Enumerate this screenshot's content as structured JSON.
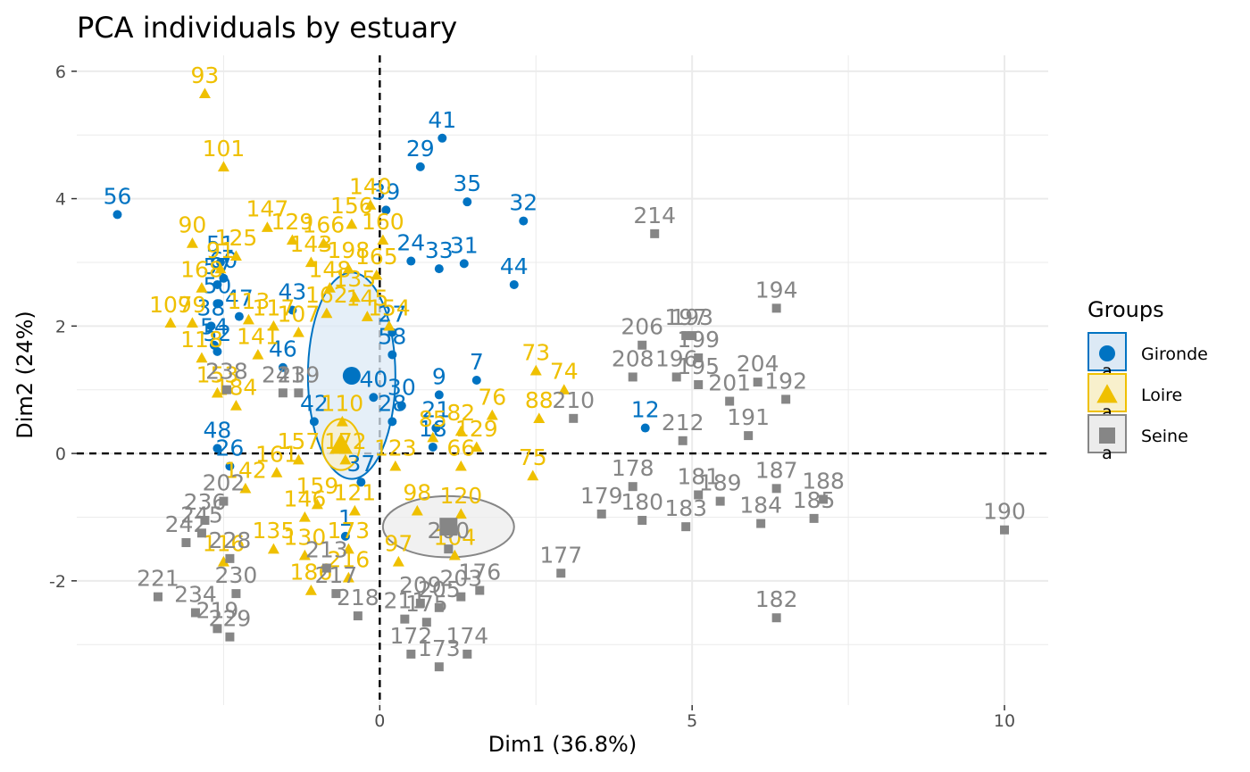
{
  "chart_data": {
    "type": "scatter",
    "title": "PCA individuals by estuary",
    "xlabel": "Dim1 (36.8%)",
    "ylabel": "Dim2 (24%)",
    "xlim": [
      -4.85,
      10.7
    ],
    "ylim": [
      -3.95,
      6.25
    ],
    "xticks": [
      0,
      5,
      10
    ],
    "yticks": [
      -2,
      0,
      2,
      4,
      6
    ],
    "grid": true,
    "legend": {
      "title": "Groups",
      "position": "right",
      "entries": [
        {
          "name": "Gironde",
          "key_letter": "a"
        },
        {
          "name": "Loire",
          "key_letter": "a"
        },
        {
          "name": "Seine",
          "key_letter": "a"
        }
      ]
    },
    "series": [
      {
        "name": "Gironde",
        "marker": "circle",
        "color": "#0073C2",
        "points": [
          {
            "x": -4.2,
            "y": 3.75,
            "label": "56"
          },
          {
            "x": 1.0,
            "y": 4.95,
            "label": "41"
          },
          {
            "x": 0.65,
            "y": 4.5,
            "label": "29"
          },
          {
            "x": 1.4,
            "y": 3.95,
            "label": "35"
          },
          {
            "x": 2.3,
            "y": 3.65,
            "label": "32"
          },
          {
            "x": 0.1,
            "y": 3.82,
            "label": "39"
          },
          {
            "x": 0.5,
            "y": 3.02,
            "label": "24"
          },
          {
            "x": 1.35,
            "y": 2.98,
            "label": "31"
          },
          {
            "x": 0.95,
            "y": 2.9,
            "label": "33"
          },
          {
            "x": 2.15,
            "y": 2.65,
            "label": "44"
          },
          {
            "x": -2.55,
            "y": 3.0,
            "label": "51"
          },
          {
            "x": -2.5,
            "y": 2.75,
            "label": "60"
          },
          {
            "x": -2.6,
            "y": 2.65,
            "label": "57"
          },
          {
            "x": -2.6,
            "y": 2.35,
            "label": "50"
          },
          {
            "x": -2.25,
            "y": 2.15,
            "label": "47"
          },
          {
            "x": -1.4,
            "y": 2.25,
            "label": "43"
          },
          {
            "x": 0.2,
            "y": 1.9,
            "label": "27"
          },
          {
            "x": 0.2,
            "y": 1.55,
            "label": "58"
          },
          {
            "x": -2.7,
            "y": 2.0,
            "label": "38"
          },
          {
            "x": -2.65,
            "y": 1.7,
            "label": "54"
          },
          {
            "x": -2.6,
            "y": 1.6,
            "label": "52"
          },
          {
            "x": -1.55,
            "y": 1.35,
            "label": "46"
          },
          {
            "x": 1.55,
            "y": 1.15,
            "label": "7"
          },
          {
            "x": 0.95,
            "y": 0.92,
            "label": "9"
          },
          {
            "x": 0.35,
            "y": 0.75,
            "label": "30"
          },
          {
            "x": -0.1,
            "y": 0.88,
            "label": "40"
          },
          {
            "x": -1.05,
            "y": 0.5,
            "label": "42"
          },
          {
            "x": 0.9,
            "y": 0.4,
            "label": "21"
          },
          {
            "x": 0.2,
            "y": 0.5,
            "label": "28"
          },
          {
            "x": 4.25,
            "y": 0.4,
            "label": "12"
          },
          {
            "x": -2.6,
            "y": 0.08,
            "label": "48"
          },
          {
            "x": -2.4,
            "y": -0.2,
            "label": "26"
          },
          {
            "x": 0.85,
            "y": 0.1,
            "label": "18"
          },
          {
            "x": -0.3,
            "y": -0.45,
            "label": "37"
          },
          {
            "x": -0.55,
            "y": -1.3,
            "label": "1"
          }
        ]
      },
      {
        "name": "Loire",
        "marker": "triangle",
        "color": "#EFC000",
        "points": [
          {
            "x": -2.8,
            "y": 5.65,
            "label": "93"
          },
          {
            "x": -2.5,
            "y": 4.5,
            "label": "101"
          },
          {
            "x": -0.45,
            "y": 3.6,
            "label": "156"
          },
          {
            "x": -0.15,
            "y": 3.9,
            "label": "140"
          },
          {
            "x": -3.0,
            "y": 3.3,
            "label": "90"
          },
          {
            "x": -1.8,
            "y": 3.55,
            "label": "147"
          },
          {
            "x": -1.4,
            "y": 3.35,
            "label": "129"
          },
          {
            "x": -0.9,
            "y": 3.3,
            "label": "166"
          },
          {
            "x": 0.05,
            "y": 3.35,
            "label": "160"
          },
          {
            "x": -2.3,
            "y": 3.1,
            "label": "125"
          },
          {
            "x": -2.55,
            "y": 2.9,
            "label": "91"
          },
          {
            "x": -1.1,
            "y": 3.0,
            "label": "143"
          },
          {
            "x": -0.5,
            "y": 2.9,
            "label": "198"
          },
          {
            "x": -0.05,
            "y": 2.8,
            "label": "165"
          },
          {
            "x": -2.85,
            "y": 2.6,
            "label": "168"
          },
          {
            "x": -0.8,
            "y": 2.6,
            "label": "148"
          },
          {
            "x": -0.4,
            "y": 2.45,
            "label": "135"
          },
          {
            "x": -0.85,
            "y": 2.2,
            "label": "162"
          },
          {
            "x": -3.35,
            "y": 2.05,
            "label": "109"
          },
          {
            "x": -3.0,
            "y": 2.05,
            "label": "79"
          },
          {
            "x": -2.1,
            "y": 2.1,
            "label": "113"
          },
          {
            "x": -1.7,
            "y": 2.0,
            "label": "117"
          },
          {
            "x": -0.2,
            "y": 2.15,
            "label": "145"
          },
          {
            "x": -1.3,
            "y": 1.9,
            "label": "107"
          },
          {
            "x": 0.15,
            "y": 2.0,
            "label": "154"
          },
          {
            "x": -2.85,
            "y": 1.5,
            "label": "118"
          },
          {
            "x": -1.95,
            "y": 1.55,
            "label": "141"
          },
          {
            "x": 2.5,
            "y": 1.3,
            "label": "73"
          },
          {
            "x": 2.95,
            "y": 1.0,
            "label": "74"
          },
          {
            "x": 1.8,
            "y": 0.6,
            "label": "76"
          },
          {
            "x": 2.55,
            "y": 0.55,
            "label": "88"
          },
          {
            "x": -2.6,
            "y": 0.95,
            "label": "153"
          },
          {
            "x": -2.3,
            "y": 0.75,
            "label": "184"
          },
          {
            "x": -0.6,
            "y": 0.5,
            "label": "110"
          },
          {
            "x": 1.3,
            "y": 0.35,
            "label": "82"
          },
          {
            "x": 0.85,
            "y": 0.25,
            "label": "85"
          },
          {
            "x": -1.3,
            "y": -0.1,
            "label": "157"
          },
          {
            "x": -1.65,
            "y": -0.3,
            "label": "161"
          },
          {
            "x": -2.15,
            "y": -0.55,
            "label": "142"
          },
          {
            "x": -0.55,
            "y": -0.1,
            "label": "172"
          },
          {
            "x": 0.25,
            "y": -0.2,
            "label": "123"
          },
          {
            "x": 1.55,
            "y": 0.1,
            "label": "129"
          },
          {
            "x": 2.45,
            "y": -0.35,
            "label": "75"
          },
          {
            "x": 1.3,
            "y": -0.2,
            "label": "66"
          },
          {
            "x": -1.0,
            "y": -0.8,
            "label": "159"
          },
          {
            "x": -1.2,
            "y": -1.0,
            "label": "146"
          },
          {
            "x": -0.4,
            "y": -0.9,
            "label": "121"
          },
          {
            "x": 0.6,
            "y": -0.9,
            "label": "98"
          },
          {
            "x": 1.3,
            "y": -0.95,
            "label": "120"
          },
          {
            "x": -1.7,
            "y": -1.5,
            "label": "135"
          },
          {
            "x": -1.2,
            "y": -1.6,
            "label": "130"
          },
          {
            "x": -0.5,
            "y": -1.5,
            "label": "173"
          },
          {
            "x": 0.3,
            "y": -1.7,
            "label": "97"
          },
          {
            "x": 1.2,
            "y": -1.6,
            "label": "104"
          },
          {
            "x": -2.5,
            "y": -1.7,
            "label": "116"
          },
          {
            "x": -1.1,
            "y": -2.15,
            "label": "186"
          },
          {
            "x": -0.5,
            "y": -1.95,
            "label": "216"
          }
        ]
      },
      {
        "name": "Seine",
        "marker": "square",
        "color": "#868686",
        "points": [
          {
            "x": 4.4,
            "y": 3.45,
            "label": "214"
          },
          {
            "x": 6.35,
            "y": 2.28,
            "label": "194"
          },
          {
            "x": 4.9,
            "y": 1.85,
            "label": "197"
          },
          {
            "x": 5.0,
            "y": 1.85,
            "label": "193"
          },
          {
            "x": 4.2,
            "y": 1.7,
            "label": "206"
          },
          {
            "x": 5.1,
            "y": 1.5,
            "label": "199"
          },
          {
            "x": 4.05,
            "y": 1.2,
            "label": "208"
          },
          {
            "x": 4.75,
            "y": 1.2,
            "label": "196"
          },
          {
            "x": 5.1,
            "y": 1.08,
            "label": "195"
          },
          {
            "x": 6.05,
            "y": 1.12,
            "label": "204"
          },
          {
            "x": 5.6,
            "y": 0.82,
            "label": "201"
          },
          {
            "x": 6.5,
            "y": 0.85,
            "label": "192"
          },
          {
            "x": 3.1,
            "y": 0.55,
            "label": "210"
          },
          {
            "x": 5.9,
            "y": 0.28,
            "label": "191"
          },
          {
            "x": 4.85,
            "y": 0.2,
            "label": "212"
          },
          {
            "x": 4.05,
            "y": -0.52,
            "label": "178"
          },
          {
            "x": 5.1,
            "y": -0.65,
            "label": "181"
          },
          {
            "x": 5.45,
            "y": -0.75,
            "label": "189"
          },
          {
            "x": 6.35,
            "y": -0.55,
            "label": "187"
          },
          {
            "x": 7.1,
            "y": -0.72,
            "label": "188"
          },
          {
            "x": 3.55,
            "y": -0.95,
            "label": "179"
          },
          {
            "x": 4.2,
            "y": -1.05,
            "label": "180"
          },
          {
            "x": 4.9,
            "y": -1.15,
            "label": "183"
          },
          {
            "x": 6.1,
            "y": -1.1,
            "label": "184"
          },
          {
            "x": 6.95,
            "y": -1.02,
            "label": "185"
          },
          {
            "x": 10.0,
            "y": -1.2,
            "label": "190"
          },
          {
            "x": 2.9,
            "y": -1.88,
            "label": "177"
          },
          {
            "x": 6.35,
            "y": -2.58,
            "label": "182"
          },
          {
            "x": 1.1,
            "y": -1.5,
            "label": "200"
          },
          {
            "x": 1.6,
            "y": -2.15,
            "label": "176"
          },
          {
            "x": 1.3,
            "y": -2.25,
            "label": "203"
          },
          {
            "x": 0.65,
            "y": -2.35,
            "label": "209"
          },
          {
            "x": 0.95,
            "y": -2.42,
            "label": "205"
          },
          {
            "x": 0.4,
            "y": -2.6,
            "label": "211"
          },
          {
            "x": 0.75,
            "y": -2.65,
            "label": "175"
          },
          {
            "x": 0.5,
            "y": -3.15,
            "label": "172"
          },
          {
            "x": 1.4,
            "y": -3.15,
            "label": "174"
          },
          {
            "x": 0.95,
            "y": -3.35,
            "label": "173"
          },
          {
            "x": -0.35,
            "y": -2.55,
            "label": "218"
          },
          {
            "x": -0.7,
            "y": -2.2,
            "label": "217"
          },
          {
            "x": -0.85,
            "y": -1.8,
            "label": "213"
          },
          {
            "x": -1.3,
            "y": 0.95,
            "label": "239"
          },
          {
            "x": -1.55,
            "y": 0.95,
            "label": "241"
          },
          {
            "x": -2.45,
            "y": 1.0,
            "label": "238"
          },
          {
            "x": -2.5,
            "y": -0.75,
            "label": "202"
          },
          {
            "x": -2.8,
            "y": -1.05,
            "label": "236"
          },
          {
            "x": -2.85,
            "y": -1.25,
            "label": "245"
          },
          {
            "x": -3.1,
            "y": -1.4,
            "label": "242"
          },
          {
            "x": -2.4,
            "y": -1.65,
            "label": "228"
          },
          {
            "x": -3.55,
            "y": -2.25,
            "label": "221"
          },
          {
            "x": -2.3,
            "y": -2.2,
            "label": "230"
          },
          {
            "x": -2.95,
            "y": -2.5,
            "label": "234"
          },
          {
            "x": -2.6,
            "y": -2.75,
            "label": "219"
          },
          {
            "x": -2.4,
            "y": -2.88,
            "label": "229"
          }
        ]
      }
    ],
    "ellipses": [
      {
        "group": "Gironde",
        "cx": -0.45,
        "cy": 1.22,
        "rx": 0.7,
        "ry": 1.62
      },
      {
        "group": "Loire",
        "cx": -0.62,
        "cy": 0.14,
        "rx": 0.3,
        "ry": 0.4
      },
      {
        "group": "Seine",
        "cx": 1.1,
        "cy": -1.15,
        "rx": 1.05,
        "ry": 0.48
      }
    ]
  }
}
